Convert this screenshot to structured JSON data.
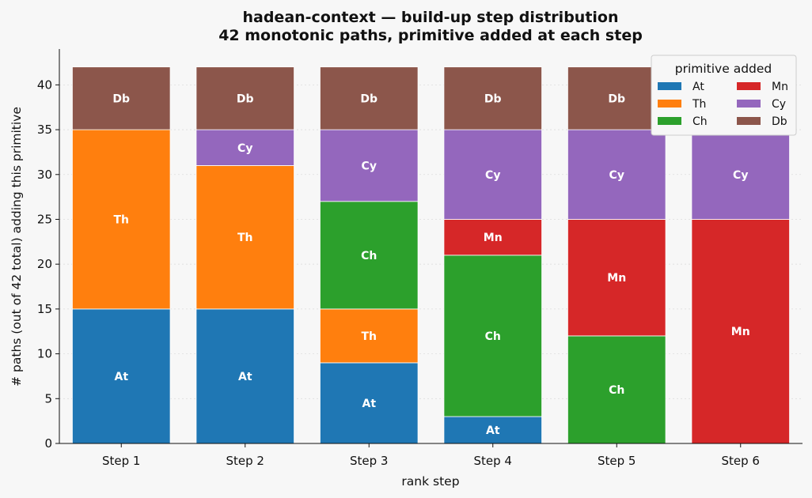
{
  "chart_data": {
    "type": "bar",
    "stacked": true,
    "title": "hadean-context — build-up step distribution",
    "subtitle": "42 monotonic paths, primitive added at each step",
    "xlabel": "rank step",
    "ylabel": "# paths (out of 42 total) adding this primitive",
    "ylim": [
      0,
      44
    ],
    "yticks": [
      0,
      5,
      10,
      15,
      20,
      25,
      30,
      35,
      40
    ],
    "categories": [
      "Step 1",
      "Step 2",
      "Step 3",
      "Step 4",
      "Step 5",
      "Step 6"
    ],
    "series": [
      {
        "name": "At",
        "color": "#1f77b4",
        "values": [
          15,
          15,
          9,
          3,
          0,
          0
        ]
      },
      {
        "name": "Th",
        "color": "#ff7f0e",
        "values": [
          20,
          16,
          6,
          0,
          0,
          0
        ]
      },
      {
        "name": "Ch",
        "color": "#2ca02c",
        "values": [
          0,
          0,
          12,
          18,
          12,
          0
        ]
      },
      {
        "name": "Mn",
        "color": "#d62728",
        "values": [
          0,
          0,
          0,
          4,
          13,
          25
        ]
      },
      {
        "name": "Cy",
        "color": "#9467bd",
        "values": [
          0,
          4,
          8,
          10,
          10,
          10
        ]
      },
      {
        "name": "Db",
        "color": "#8c564b",
        "values": [
          7,
          7,
          7,
          7,
          7,
          7
        ]
      }
    ],
    "legend": {
      "title": "primitive added",
      "placement": "top-right",
      "columns": 2,
      "order": [
        "At",
        "Mn",
        "Th",
        "Cy",
        "Ch",
        "Db"
      ]
    },
    "grid": {
      "y": true,
      "x": false
    }
  }
}
